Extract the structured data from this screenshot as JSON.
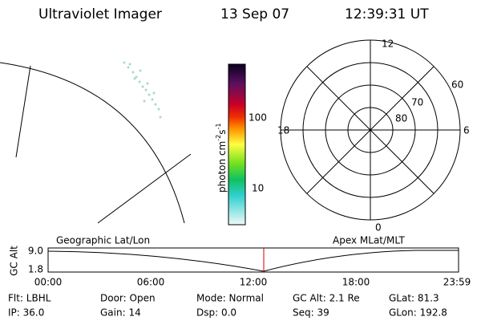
{
  "header": {
    "title": "Ultraviolet Imager",
    "date": "13 Sep 07",
    "time": "12:39:31 UT"
  },
  "colorbar": {
    "unit": [
      "photon cm",
      "-2",
      "s",
      "-1"
    ],
    "ticks": [
      "100",
      "10"
    ]
  },
  "polar": {
    "mlt_labels": [
      "12",
      "18",
      "6",
      "0"
    ],
    "lat_labels": [
      "60",
      "70",
      "80"
    ]
  },
  "timeline": {
    "left_title": "Geographic Lat/Lon",
    "right_title": "Apex MLat/MLT",
    "axis_label": "GC Alt",
    "alt_ticks": [
      "9.0",
      "1.8"
    ],
    "time_ticks": [
      "00:00",
      "06:00",
      "12:00",
      "18:00",
      "23:59"
    ]
  },
  "info": [
    [
      "Flt: LBHL",
      "Door: Open",
      "Mode: Normal",
      "GC Alt: 2.1 Re",
      "GLat:  81.3"
    ],
    [
      "IP: 36.0",
      "Gain: 14",
      "Dsp:    0.0",
      "Seq: 39",
      "GLon: 192.8"
    ]
  ]
}
